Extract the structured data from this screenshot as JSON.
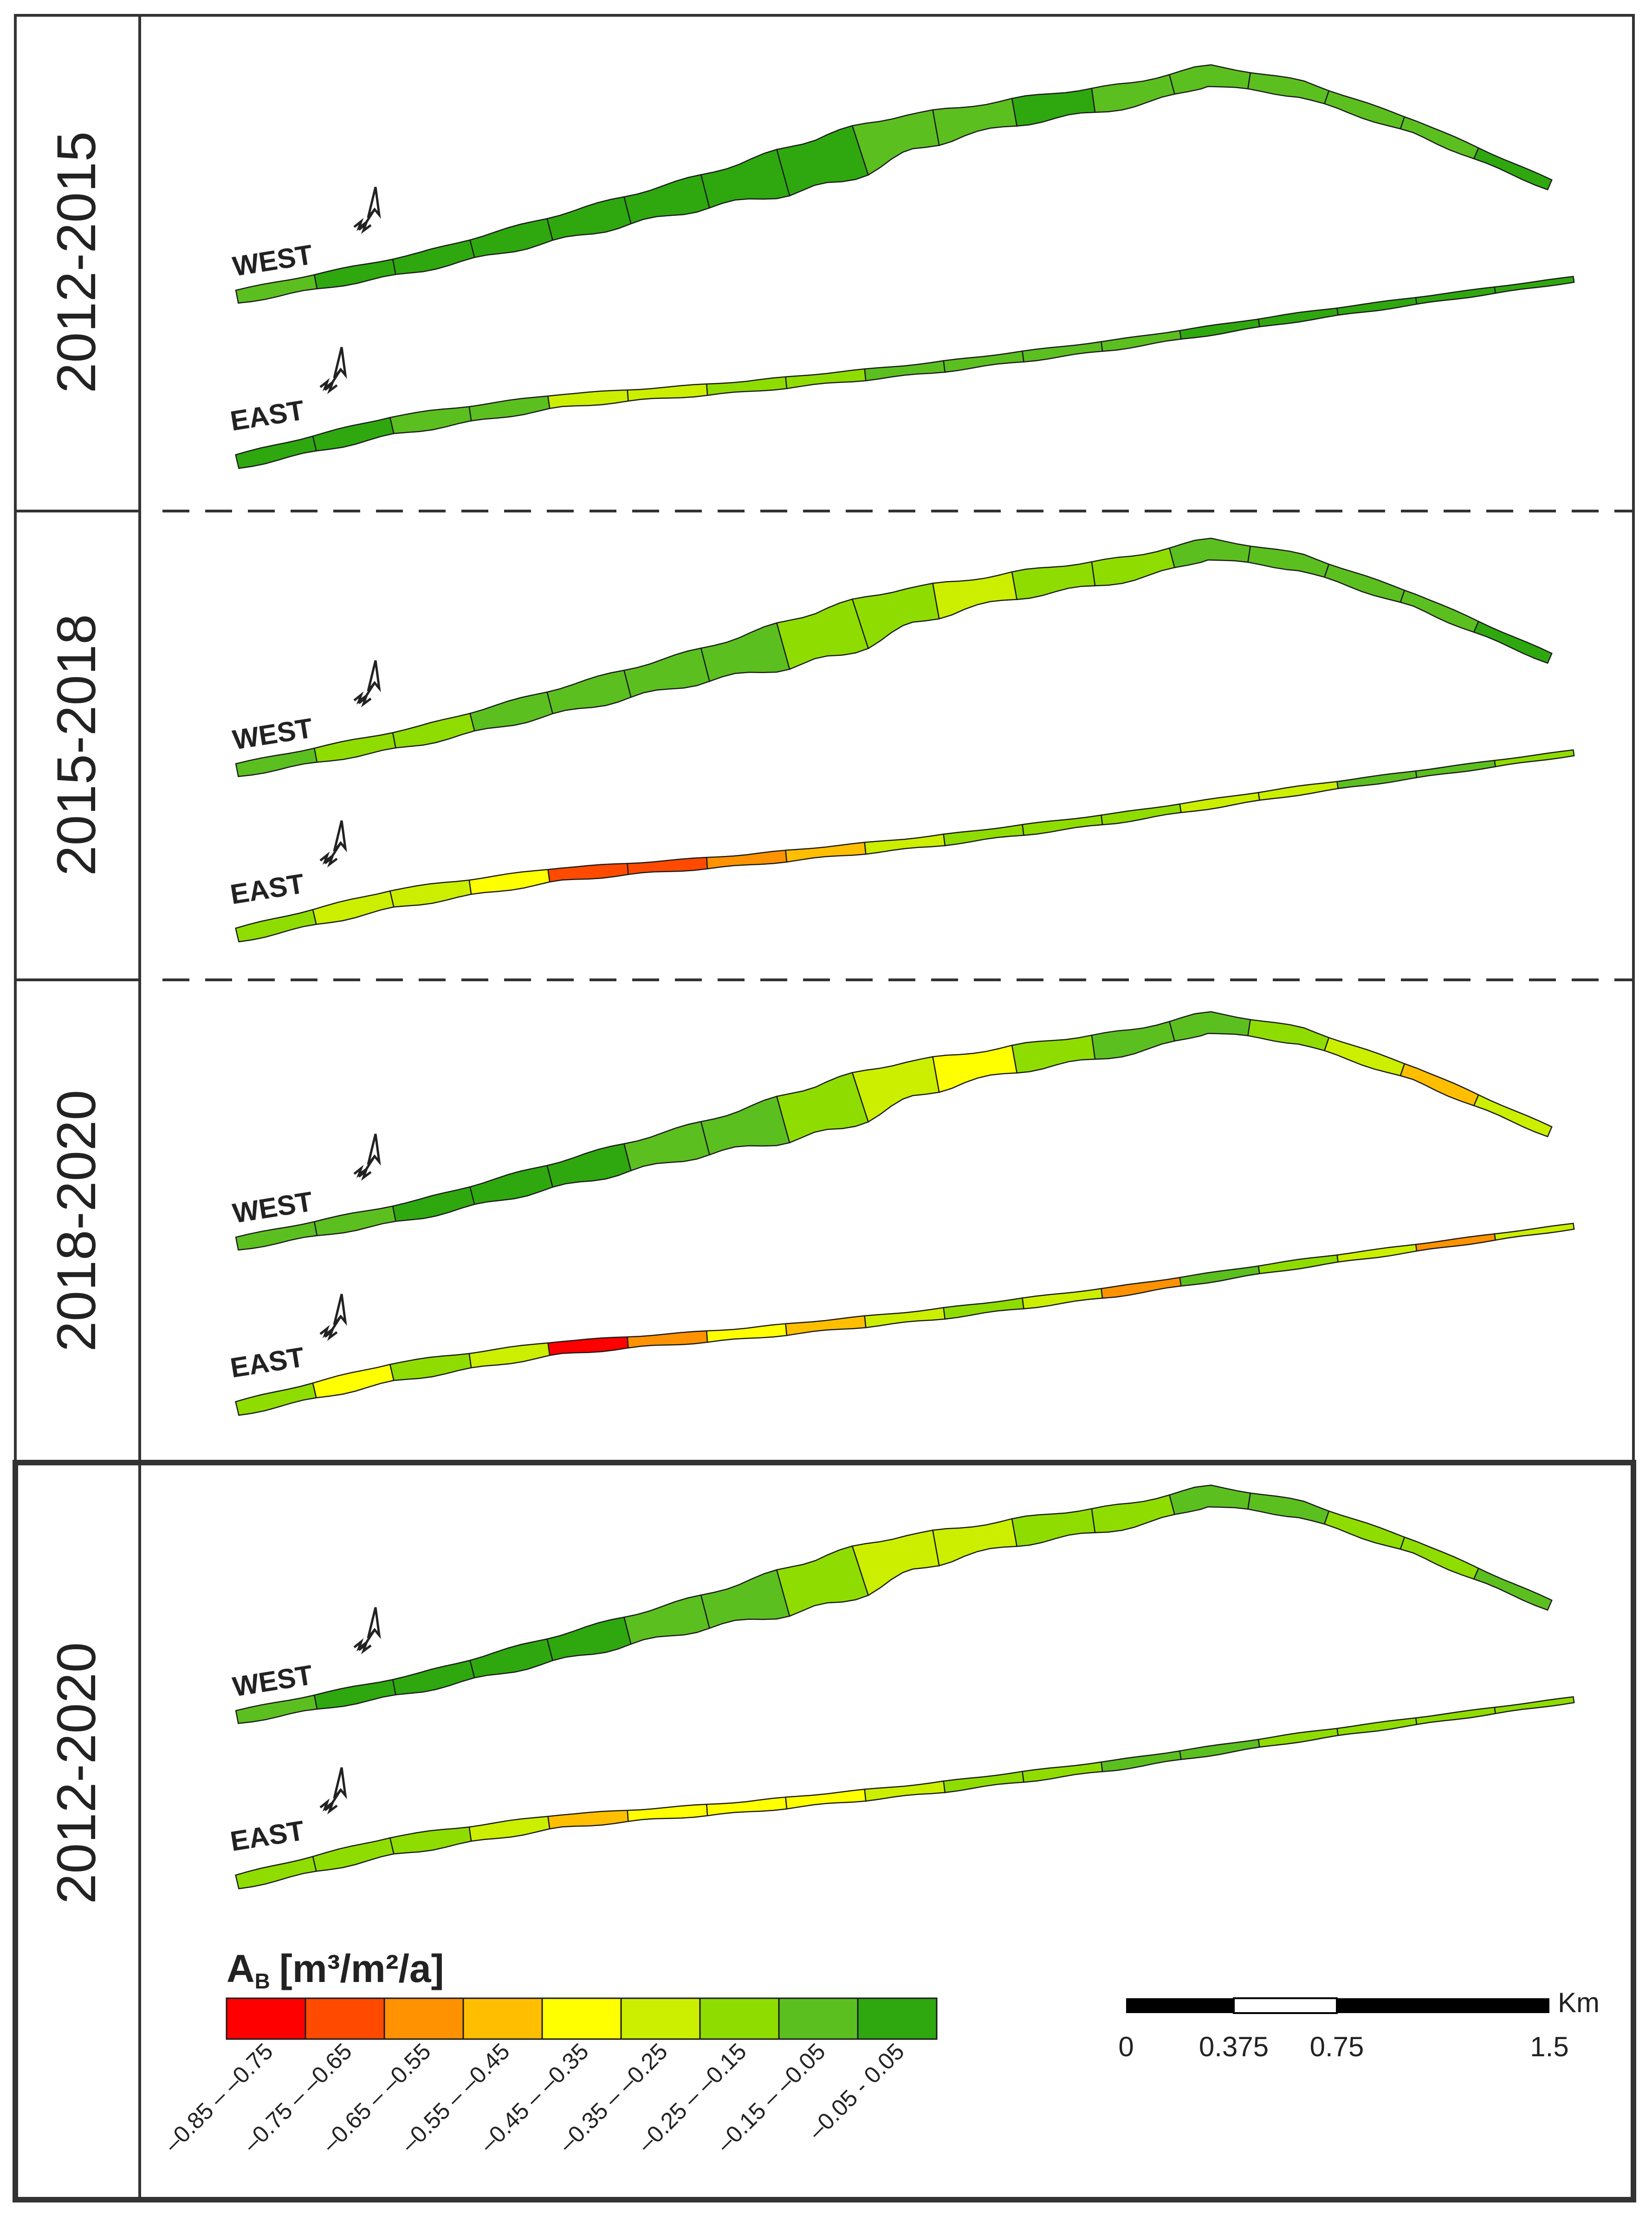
{
  "panels": [
    {
      "period": "2012-2015",
      "west_label": "WEST",
      "east_label": "EAST",
      "west_classes": [
        7,
        8,
        8,
        8,
        8,
        8,
        8,
        8,
        7,
        7,
        8,
        7,
        7,
        7,
        7,
        7,
        8
      ],
      "east_classes": [
        8,
        8,
        7,
        7,
        5,
        5,
        6,
        6,
        7,
        7,
        7,
        7,
        8,
        8,
        8,
        8,
        8
      ]
    },
    {
      "period": "2015-2018",
      "west_label": "WEST",
      "east_label": "EAST",
      "west_classes": [
        7,
        6,
        6,
        7,
        7,
        7,
        7,
        6,
        6,
        5,
        6,
        6,
        7,
        7,
        7,
        7,
        8
      ],
      "east_classes": [
        6,
        5,
        5,
        4,
        1,
        1,
        2,
        3,
        5,
        6,
        6,
        6,
        5,
        5,
        7,
        7,
        6
      ]
    },
    {
      "period": "2018-2020",
      "west_label": "WEST",
      "east_label": "EAST",
      "west_classes": [
        7,
        7,
        8,
        8,
        8,
        7,
        7,
        6,
        5,
        4,
        6,
        7,
        7,
        6,
        5,
        3,
        5
      ],
      "east_classes": [
        6,
        4,
        6,
        5,
        0,
        2,
        4,
        3,
        5,
        6,
        5,
        2,
        7,
        6,
        5,
        2,
        5
      ]
    },
    {
      "period": "2012-2020",
      "west_label": "WEST",
      "east_label": "EAST",
      "west_classes": [
        7,
        8,
        8,
        8,
        8,
        7,
        7,
        6,
        5,
        5,
        6,
        6,
        7,
        7,
        6,
        6,
        7
      ],
      "east_classes": [
        6,
        6,
        6,
        5,
        3,
        4,
        4,
        4,
        5,
        6,
        6,
        7,
        7,
        6,
        6,
        6,
        6
      ]
    }
  ],
  "legend": {
    "title": "A",
    "title_subscript": "B",
    "title_units": "[m³/m²/a]",
    "classes": [
      {
        "label": "–0.85 – –0.75",
        "color": "#ff0000"
      },
      {
        "label": "–0.75 – –0.65",
        "color": "#ff4a00"
      },
      {
        "label": "–0.65 – –0.55",
        "color": "#ff9200"
      },
      {
        "label": "–0.55 – –0.45",
        "color": "#ffbf00"
      },
      {
        "label": "–0.45 – –0.35",
        "color": "#ffff00"
      },
      {
        "label": "–0.35 – –0.25",
        "color": "#ccef00"
      },
      {
        "label": "–0.25 – –0.15",
        "color": "#8fdd00"
      },
      {
        "label": "–0.15 – –0.05",
        "color": "#5cbf20"
      },
      {
        "label": "–0.05 - 0.05",
        "color": "#2ea80e"
      }
    ]
  },
  "scale_bar": {
    "unit": "Km",
    "ticks": [
      "0",
      "0.375",
      "0.75",
      "1.5"
    ]
  },
  "colors": {
    "frame": "#333333",
    "outline": "#1a1a1a"
  }
}
